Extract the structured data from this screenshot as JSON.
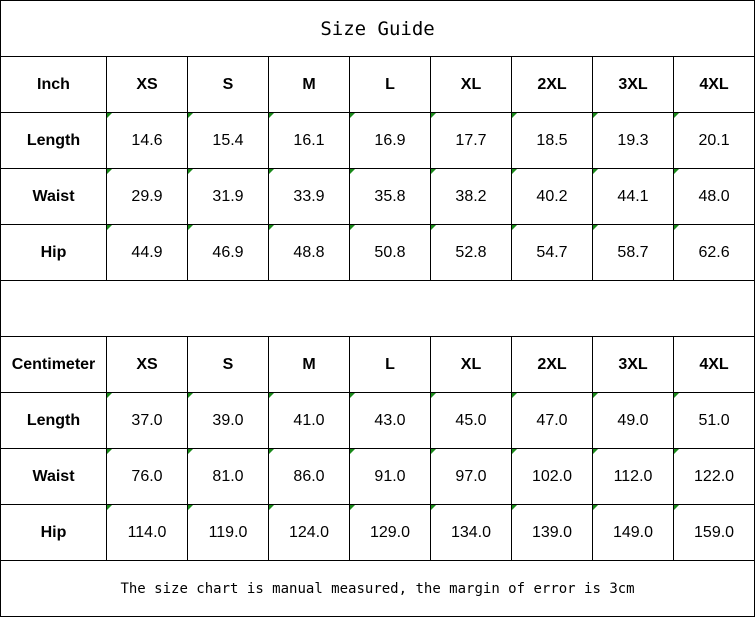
{
  "title": "Size Guide",
  "sizes": [
    "XS",
    "S",
    "M",
    "L",
    "XL",
    "2XL",
    "3XL",
    "4XL"
  ],
  "inch": {
    "label": "Inch",
    "rows": [
      {
        "label": "Length",
        "values": [
          "14.6",
          "15.4",
          "16.1",
          "16.9",
          "17.7",
          "18.5",
          "19.3",
          "20.1"
        ]
      },
      {
        "label": "Waist",
        "values": [
          "29.9",
          "31.9",
          "33.9",
          "35.8",
          "38.2",
          "40.2",
          "44.1",
          "48.0"
        ]
      },
      {
        "label": "Hip",
        "values": [
          "44.9",
          "46.9",
          "48.8",
          "50.8",
          "52.8",
          "54.7",
          "58.7",
          "62.6"
        ]
      }
    ]
  },
  "cm": {
    "label": "Centimeter",
    "rows": [
      {
        "label": "Length",
        "values": [
          "37.0",
          "39.0",
          "41.0",
          "43.0",
          "45.0",
          "47.0",
          "49.0",
          "51.0"
        ]
      },
      {
        "label": "Waist",
        "values": [
          "76.0",
          "81.0",
          "86.0",
          "91.0",
          "97.0",
          "102.0",
          "112.0",
          "122.0"
        ]
      },
      {
        "label": "Hip",
        "values": [
          "114.0",
          "119.0",
          "124.0",
          "129.0",
          "134.0",
          "139.0",
          "149.0",
          "159.0"
        ]
      }
    ]
  },
  "note": "The size chart is manual measured, the margin of error is 3cm",
  "colors": {
    "cell_marker": "#1a8a1a"
  }
}
